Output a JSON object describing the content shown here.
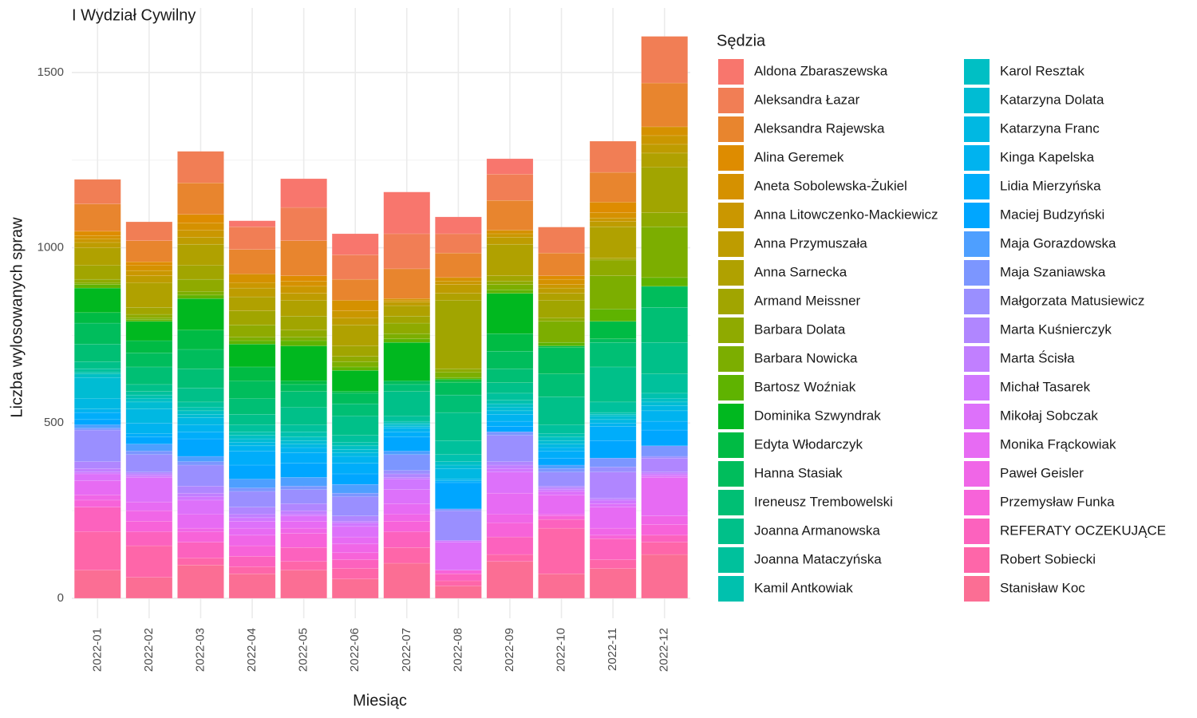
{
  "chart_data": {
    "type": "stacked_bar",
    "title": "I Wydział Cywilny",
    "x_label": "Miesiąc",
    "y_label": "Liczba wylosowanych spraw",
    "legend_title": "Sędzia",
    "categories": [
      "2022-01",
      "2022-02",
      "2022-03",
      "2022-04",
      "2022-05",
      "2022-06",
      "2022-07",
      "2022-08",
      "2022-09",
      "2022-10",
      "2022-11",
      "2022-12"
    ],
    "ylim": [
      -57,
      1684
    ],
    "yticks": [
      0,
      500,
      1000,
      1500
    ],
    "minor_yticks": [
      250,
      750,
      1250
    ],
    "grid": true,
    "legend_position": "right",
    "series": [
      {
        "name": "Aldona Zbaraszewska",
        "color": "#F8766D",
        "values": [
          0,
          0,
          0,
          17,
          82,
          60,
          119,
          48,
          44,
          0,
          0,
          0
        ]
      },
      {
        "name": "Aleksandra Łazar",
        "color": "#F17E55",
        "values": [
          70,
          54,
          90,
          65,
          95,
          70,
          100,
          55,
          75,
          74,
          89,
          133
        ]
      },
      {
        "name": "Aleksandra Rajewska",
        "color": "#E8852E",
        "values": [
          78,
          60,
          90,
          70,
          100,
          60,
          85,
          70,
          85,
          65,
          85,
          125
        ]
      },
      {
        "name": "Alina Geremek",
        "color": "#DE8C00",
        "values": [
          12,
          10,
          25,
          0,
          15,
          0,
          0,
          0,
          0,
          10,
          30,
          0
        ]
      },
      {
        "name": "Aneta Sobolewska-Żukiel",
        "color": "#D59100",
        "values": [
          10,
          15,
          20,
          25,
          15,
          30,
          5,
          10,
          10,
          15,
          15,
          25
        ]
      },
      {
        "name": "Anna Litowczenko-Mackiewicz",
        "color": "#CA9700",
        "values": [
          10,
          15,
          20,
          15,
          20,
          20,
          5,
          10,
          10,
          10,
          10,
          25
        ]
      },
      {
        "name": "Anna Przymuszała",
        "color": "#BE9C00",
        "values": [
          15,
          20,
          20,
          25,
          20,
          20,
          10,
          25,
          20,
          15,
          15,
          25
        ]
      },
      {
        "name": "Anna Sarnecka",
        "color": "#B0A100",
        "values": [
          50,
          70,
          60,
          40,
          45,
          60,
          30,
          20,
          90,
          20,
          90,
          40
        ]
      },
      {
        "name": "Armand Meissner",
        "color": "#A1A500",
        "values": [
          40,
          20,
          40,
          40,
          40,
          30,
          20,
          195,
          15,
          50,
          5,
          130
        ]
      },
      {
        "name": "Barbara Dolata",
        "color": "#8FAA00",
        "values": [
          10,
          10,
          35,
          35,
          20,
          15,
          30,
          10,
          10,
          10,
          45,
          40
        ]
      },
      {
        "name": "Barbara Nowicka",
        "color": "#7CAE00",
        "values": [
          5,
          5,
          10,
          10,
          10,
          15,
          15,
          15,
          15,
          60,
          95,
          145
        ]
      },
      {
        "name": "Bartosz Woźniak",
        "color": "#5FB300",
        "values": [
          10,
          5,
          10,
          10,
          15,
          10,
          10,
          5,
          10,
          10,
          35,
          25
        ]
      },
      {
        "name": "Dominika Szwyndrak",
        "color": "#00B81F",
        "values": [
          70,
          55,
          90,
          65,
          100,
          60,
          110,
          5,
          115,
          0,
          0,
          0
        ]
      },
      {
        "name": "Edyta Włodarczyk",
        "color": "#00BB44",
        "values": [
          30,
          35,
          55,
          40,
          10,
          5,
          0,
          5,
          50,
          5,
          50,
          0
        ]
      },
      {
        "name": "Hanna Stasiak",
        "color": "#00BD5C",
        "values": [
          60,
          40,
          55,
          50,
          20,
          30,
          10,
          35,
          50,
          75,
          10,
          60
        ]
      },
      {
        "name": "Ireneusz Trembowelski",
        "color": "#00BF74",
        "values": [
          50,
          50,
          55,
          45,
          45,
          35,
          20,
          50,
          40,
          65,
          70,
          100
        ]
      },
      {
        "name": "Joanna Armanowska",
        "color": "#00C089",
        "values": [
          20,
          20,
          40,
          30,
          50,
          55,
          70,
          80,
          30,
          80,
          100,
          90
        ]
      },
      {
        "name": "Joanna Mataczyńska",
        "color": "#00C19C",
        "values": [
          10,
          10,
          15,
          20,
          20,
          20,
          15,
          40,
          20,
          25,
          30,
          55
        ]
      },
      {
        "name": "Kamil Antkowiak",
        "color": "#00C1AE",
        "values": [
          5,
          10,
          10,
          10,
          15,
          10,
          5,
          20,
          10,
          10,
          5,
          15
        ]
      },
      {
        "name": "Karol Resztak",
        "color": "#00BFC4",
        "values": [
          10,
          10,
          10,
          10,
          10,
          10,
          5,
          10,
          10,
          10,
          5,
          10
        ]
      },
      {
        "name": "Katarzyna Dolata",
        "color": "#00BCD3",
        "values": [
          60,
          20,
          10,
          10,
          10,
          10,
          5,
          10,
          10,
          10,
          10,
          10
        ]
      },
      {
        "name": "Katarzyna Franc",
        "color": "#00B8E2",
        "values": [
          30,
          40,
          20,
          10,
          10,
          10,
          5,
          30,
          10,
          10,
          10,
          15
        ]
      },
      {
        "name": "Kinga Kapelska",
        "color": "#00B3EF",
        "values": [
          10,
          30,
          20,
          15,
          15,
          20,
          10,
          5,
          20,
          10,
          10,
          30
        ]
      },
      {
        "name": "Lidia Mierzyńska",
        "color": "#00ADFA",
        "values": [
          20,
          10,
          20,
          40,
          30,
          30,
          15,
          5,
          15,
          20,
          40,
          25
        ]
      },
      {
        "name": "Maciej Budzyński",
        "color": "#00A6FF",
        "values": [
          15,
          20,
          50,
          40,
          40,
          30,
          40,
          75,
          15,
          20,
          50,
          45
        ]
      },
      {
        "name": "Maja Gorazdowska",
        "color": "#4E9FFF",
        "values": [
          10,
          20,
          15,
          25,
          25,
          25,
          10,
          0,
          0,
          10,
          0,
          0
        ]
      },
      {
        "name": "Maja Szaniawska",
        "color": "#7C96FF",
        "values": [
          5,
          10,
          10,
          10,
          10,
          10,
          45,
          5,
          10,
          10,
          25,
          30
        ]
      },
      {
        "name": "Małgorzata Matusiewicz",
        "color": "#9A8FFF",
        "values": [
          90,
          50,
          60,
          45,
          40,
          55,
          10,
          85,
          75,
          40,
          15,
          5
        ]
      },
      {
        "name": "Marta Kuśnierczyk",
        "color": "#B086FF",
        "values": [
          20,
          5,
          20,
          20,
          20,
          15,
          10,
          0,
          10,
          5,
          75,
          40
        ]
      },
      {
        "name": "Marta Ścisła",
        "color": "#C17FFF",
        "values": [
          10,
          5,
          10,
          10,
          10,
          5,
          5,
          0,
          10,
          5,
          5,
          5
        ]
      },
      {
        "name": "Michał Tasarek",
        "color": "#D077FF",
        "values": [
          5,
          5,
          10,
          10,
          5,
          10,
          30,
          5,
          10,
          5,
          10,
          5
        ]
      },
      {
        "name": "Mikołaj Sobczak",
        "color": "#DD71FA",
        "values": [
          20,
          70,
          40,
          20,
          15,
          30,
          40,
          80,
          60,
          10,
          10,
          5
        ]
      },
      {
        "name": "Monika Frąckowiak",
        "color": "#E76BF3",
        "values": [
          40,
          25,
          40,
          20,
          20,
          20,
          30,
          0,
          60,
          55,
          60,
          110
        ]
      },
      {
        "name": "Paweł Geisler",
        "color": "#F066E7",
        "values": [
          15,
          30,
          10,
          30,
          15,
          25,
          20,
          0,
          25,
          5,
          20,
          25
        ]
      },
      {
        "name": "Przemysław Funka",
        "color": "#F763D9",
        "values": [
          20,
          30,
          30,
          30,
          40,
          20,
          30,
          10,
          40,
          10,
          10,
          30
        ]
      },
      {
        "name": "REFERATY OCZEKUJĄCE",
        "color": "#FC62BE",
        "values": [
          70,
          40,
          45,
          30,
          40,
          25,
          45,
          20,
          50,
          25,
          60,
          20
        ]
      },
      {
        "name": "Robert Sobiecki",
        "color": "#FE66A9",
        "values": [
          110,
          90,
          20,
          20,
          25,
          30,
          45,
          15,
          20,
          130,
          25,
          35
        ]
      },
      {
        "name": "Stanisław Koc",
        "color": "#FB6E94",
        "values": [
          80,
          60,
          95,
          70,
          80,
          55,
          100,
          35,
          105,
          70,
          85,
          125
        ]
      }
    ]
  }
}
